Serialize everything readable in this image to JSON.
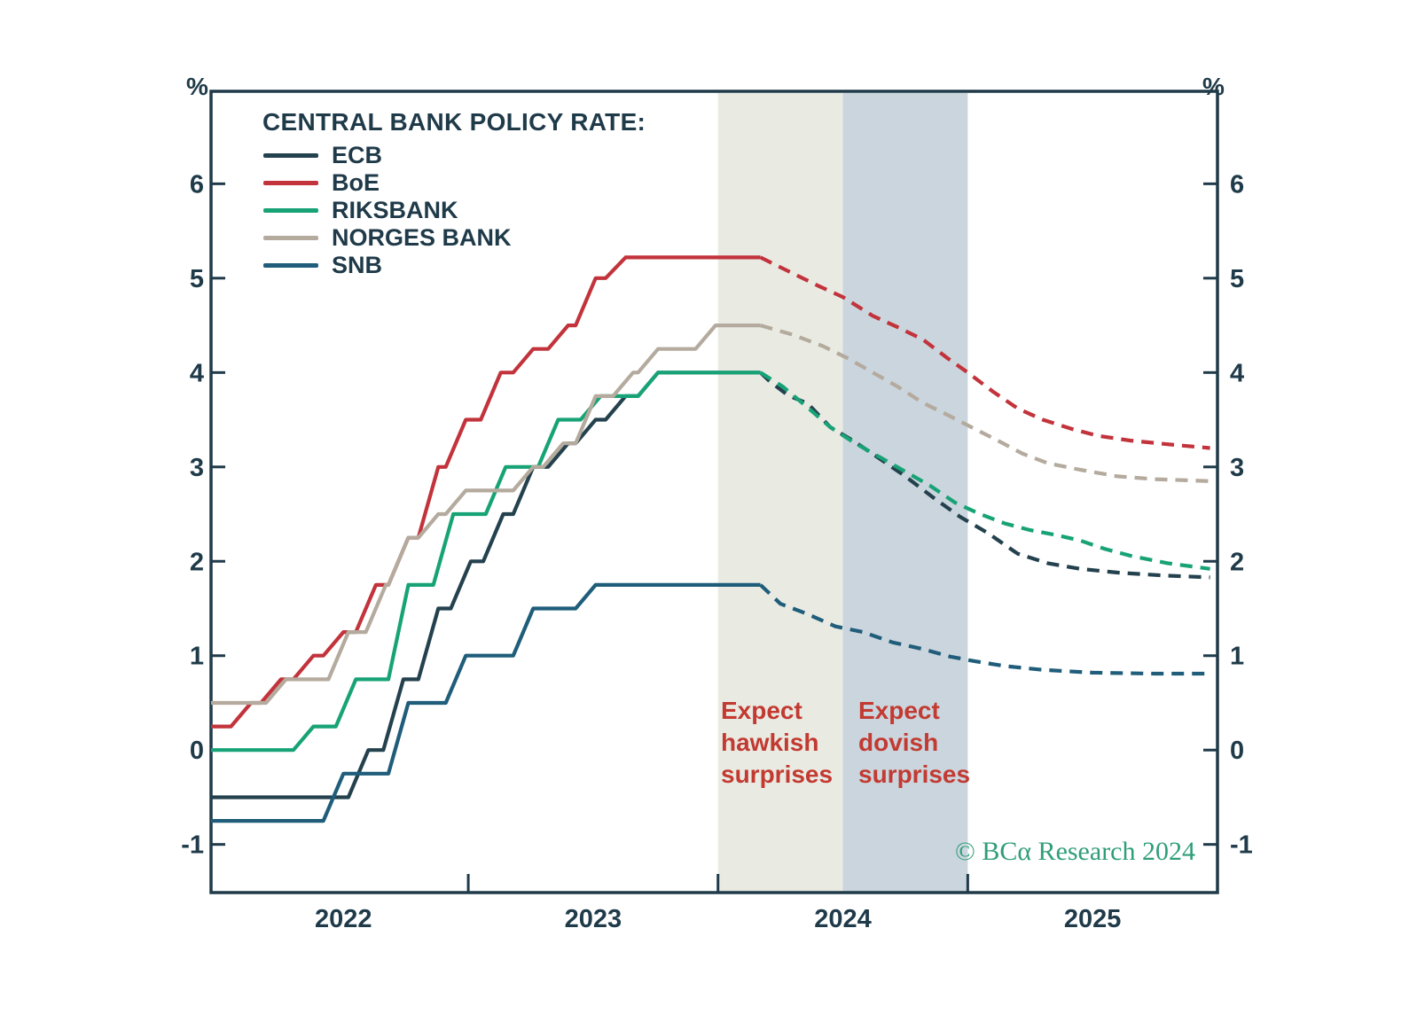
{
  "chart_data": {
    "type": "line",
    "title": "CENTRAL BANK POLICY RATE:",
    "y_unit": "%",
    "axis_color": "#1f3a49",
    "x_domain": [
      2021.97,
      2026.0
    ],
    "y_domain": [
      -1.51,
      6.98
    ],
    "y_ticks": [
      6,
      5,
      4,
      3,
      2,
      1,
      0,
      -1
    ],
    "x_tick_lines": [
      2023,
      2024,
      2025
    ],
    "x_labels": [
      {
        "text": "2022",
        "t": 2022.5
      },
      {
        "text": "2023",
        "t": 2023.5
      },
      {
        "text": "2024",
        "t": 2024.5
      },
      {
        "text": "2025",
        "t": 2025.5
      }
    ],
    "grid": false,
    "legend_position": "top-left",
    "annotation_color": "#c23a31",
    "bands": [
      {
        "from": 2024.0,
        "to": 2024.5,
        "color": "#e9ebe3",
        "label": "Expect\nhawkish\nsurprises"
      },
      {
        "from": 2024.5,
        "to": 2025.0,
        "color": "#cbd5dd",
        "label": "Expect\ndovish\nsurprises"
      }
    ],
    "watermark": {
      "text": "© BCα Research 2024",
      "color": "#2f9e78"
    },
    "series": [
      {
        "name": "ECB",
        "color": "#24414e",
        "solid": [
          [
            2021.97,
            -0.5
          ],
          [
            2022.52,
            -0.5
          ],
          [
            2022.6,
            0
          ],
          [
            2022.66,
            0
          ],
          [
            2022.74,
            0.75
          ],
          [
            2022.8,
            0.75
          ],
          [
            2022.88,
            1.5
          ],
          [
            2022.93,
            1.5
          ],
          [
            2023.01,
            2.0
          ],
          [
            2023.06,
            2.0
          ],
          [
            2023.14,
            2.5
          ],
          [
            2023.18,
            2.5
          ],
          [
            2023.26,
            3.0
          ],
          [
            2023.32,
            3.0
          ],
          [
            2023.4,
            3.25
          ],
          [
            2023.43,
            3.25
          ],
          [
            2023.51,
            3.5
          ],
          [
            2023.55,
            3.5
          ],
          [
            2023.63,
            3.75
          ],
          [
            2023.68,
            3.75
          ],
          [
            2023.76,
            4.0
          ],
          [
            2024.17,
            4.0
          ]
        ],
        "dashed": [
          [
            2024.17,
            4.0
          ],
          [
            2024.21,
            3.9
          ],
          [
            2024.28,
            3.76
          ],
          [
            2024.36,
            3.67
          ],
          [
            2024.45,
            3.42
          ],
          [
            2024.54,
            3.28
          ],
          [
            2024.64,
            3.1
          ],
          [
            2024.75,
            2.9
          ],
          [
            2024.86,
            2.68
          ],
          [
            2024.97,
            2.47
          ],
          [
            2025.08,
            2.3
          ],
          [
            2025.2,
            2.08
          ],
          [
            2025.32,
            1.98
          ],
          [
            2025.45,
            1.92
          ],
          [
            2025.6,
            1.88
          ],
          [
            2025.78,
            1.85
          ],
          [
            2025.97,
            1.83
          ]
        ]
      },
      {
        "name": "BoE",
        "color": "#c2333b",
        "solid": [
          [
            2021.97,
            0.25
          ],
          [
            2022.05,
            0.25
          ],
          [
            2022.13,
            0.5
          ],
          [
            2022.17,
            0.5
          ],
          [
            2022.25,
            0.75
          ],
          [
            2022.3,
            0.75
          ],
          [
            2022.38,
            1.0
          ],
          [
            2022.42,
            1.0
          ],
          [
            2022.5,
            1.25
          ],
          [
            2022.55,
            1.25
          ],
          [
            2022.63,
            1.75
          ],
          [
            2022.68,
            1.75
          ],
          [
            2022.76,
            2.25
          ],
          [
            2022.8,
            2.25
          ],
          [
            2022.88,
            3.0
          ],
          [
            2022.91,
            3.0
          ],
          [
            2022.99,
            3.5
          ],
          [
            2023.05,
            3.5
          ],
          [
            2023.13,
            4.0
          ],
          [
            2023.18,
            4.0
          ],
          [
            2023.26,
            4.25
          ],
          [
            2023.32,
            4.25
          ],
          [
            2023.4,
            4.5
          ],
          [
            2023.43,
            4.5
          ],
          [
            2023.51,
            5.0
          ],
          [
            2023.55,
            5.0
          ],
          [
            2023.63,
            5.22
          ],
          [
            2024.17,
            5.22
          ]
        ],
        "dashed": [
          [
            2024.17,
            5.22
          ],
          [
            2024.3,
            5.05
          ],
          [
            2024.4,
            4.92
          ],
          [
            2024.5,
            4.8
          ],
          [
            2024.62,
            4.6
          ],
          [
            2024.72,
            4.48
          ],
          [
            2024.82,
            4.35
          ],
          [
            2024.92,
            4.15
          ],
          [
            2025.0,
            4.0
          ],
          [
            2025.1,
            3.8
          ],
          [
            2025.2,
            3.62
          ],
          [
            2025.3,
            3.5
          ],
          [
            2025.42,
            3.4
          ],
          [
            2025.52,
            3.33
          ],
          [
            2025.65,
            3.28
          ],
          [
            2025.8,
            3.24
          ],
          [
            2025.97,
            3.2
          ]
        ]
      },
      {
        "name": "RIKSBANK",
        "color": "#17a376",
        "solid": [
          [
            2021.97,
            0
          ],
          [
            2022.3,
            0
          ],
          [
            2022.38,
            0.25
          ],
          [
            2022.47,
            0.25
          ],
          [
            2022.55,
            0.75
          ],
          [
            2022.68,
            0.75
          ],
          [
            2022.76,
            1.75
          ],
          [
            2022.86,
            1.75
          ],
          [
            2022.94,
            2.5
          ],
          [
            2023.07,
            2.5
          ],
          [
            2023.15,
            3.0
          ],
          [
            2023.28,
            3.0
          ],
          [
            2023.36,
            3.5
          ],
          [
            2023.45,
            3.5
          ],
          [
            2023.53,
            3.75
          ],
          [
            2023.68,
            3.75
          ],
          [
            2023.76,
            4.0
          ],
          [
            2024.17,
            4.0
          ]
        ],
        "dashed": [
          [
            2024.17,
            4.0
          ],
          [
            2024.26,
            3.85
          ],
          [
            2024.35,
            3.65
          ],
          [
            2024.45,
            3.42
          ],
          [
            2024.55,
            3.25
          ],
          [
            2024.65,
            3.1
          ],
          [
            2024.75,
            2.95
          ],
          [
            2024.85,
            2.8
          ],
          [
            2024.95,
            2.62
          ],
          [
            2025.05,
            2.5
          ],
          [
            2025.15,
            2.4
          ],
          [
            2025.25,
            2.33
          ],
          [
            2025.35,
            2.28
          ],
          [
            2025.45,
            2.22
          ],
          [
            2025.55,
            2.13
          ],
          [
            2025.65,
            2.06
          ],
          [
            2025.8,
            1.98
          ],
          [
            2025.97,
            1.92
          ]
        ]
      },
      {
        "name": "NORGES BANK",
        "color": "#b4aa9d",
        "solid": [
          [
            2021.97,
            0.5
          ],
          [
            2022.19,
            0.5
          ],
          [
            2022.27,
            0.75
          ],
          [
            2022.44,
            0.75
          ],
          [
            2022.52,
            1.25
          ],
          [
            2022.59,
            1.25
          ],
          [
            2022.67,
            1.75
          ],
          [
            2022.68,
            1.75
          ],
          [
            2022.76,
            2.25
          ],
          [
            2022.8,
            2.25
          ],
          [
            2022.88,
            2.5
          ],
          [
            2022.91,
            2.5
          ],
          [
            2022.99,
            2.75
          ],
          [
            2023.18,
            2.75
          ],
          [
            2023.26,
            3.0
          ],
          [
            2023.3,
            3.0
          ],
          [
            2023.38,
            3.25
          ],
          [
            2023.43,
            3.25
          ],
          [
            2023.51,
            3.75
          ],
          [
            2023.58,
            3.75
          ],
          [
            2023.66,
            4.0
          ],
          [
            2023.68,
            4.0
          ],
          [
            2023.76,
            4.25
          ],
          [
            2023.91,
            4.25
          ],
          [
            2023.99,
            4.5
          ],
          [
            2024.17,
            4.5
          ]
        ],
        "dashed": [
          [
            2024.17,
            4.5
          ],
          [
            2024.3,
            4.4
          ],
          [
            2024.42,
            4.28
          ],
          [
            2024.52,
            4.15
          ],
          [
            2024.62,
            4.0
          ],
          [
            2024.72,
            3.85
          ],
          [
            2024.82,
            3.68
          ],
          [
            2024.92,
            3.55
          ],
          [
            2025.0,
            3.44
          ],
          [
            2025.12,
            3.28
          ],
          [
            2025.22,
            3.14
          ],
          [
            2025.32,
            3.04
          ],
          [
            2025.45,
            2.97
          ],
          [
            2025.6,
            2.9
          ],
          [
            2025.75,
            2.87
          ],
          [
            2025.97,
            2.85
          ]
        ]
      },
      {
        "name": "SNB",
        "color": "#1f5d7b",
        "solid": [
          [
            2021.97,
            -0.75
          ],
          [
            2022.42,
            -0.75
          ],
          [
            2022.5,
            -0.25
          ],
          [
            2022.68,
            -0.25
          ],
          [
            2022.76,
            0.5
          ],
          [
            2022.91,
            0.5
          ],
          [
            2022.99,
            1.0
          ],
          [
            2023.18,
            1.0
          ],
          [
            2023.26,
            1.5
          ],
          [
            2023.43,
            1.5
          ],
          [
            2023.51,
            1.75
          ],
          [
            2024.17,
            1.75
          ]
        ],
        "dashed": [
          [
            2024.17,
            1.75
          ],
          [
            2024.25,
            1.55
          ],
          [
            2024.35,
            1.45
          ],
          [
            2024.47,
            1.31
          ],
          [
            2024.58,
            1.25
          ],
          [
            2024.7,
            1.14
          ],
          [
            2024.82,
            1.07
          ],
          [
            2024.93,
            0.99
          ],
          [
            2025.03,
            0.94
          ],
          [
            2025.15,
            0.89
          ],
          [
            2025.3,
            0.85
          ],
          [
            2025.5,
            0.82
          ],
          [
            2025.75,
            0.81
          ],
          [
            2025.97,
            0.81
          ]
        ]
      }
    ]
  }
}
